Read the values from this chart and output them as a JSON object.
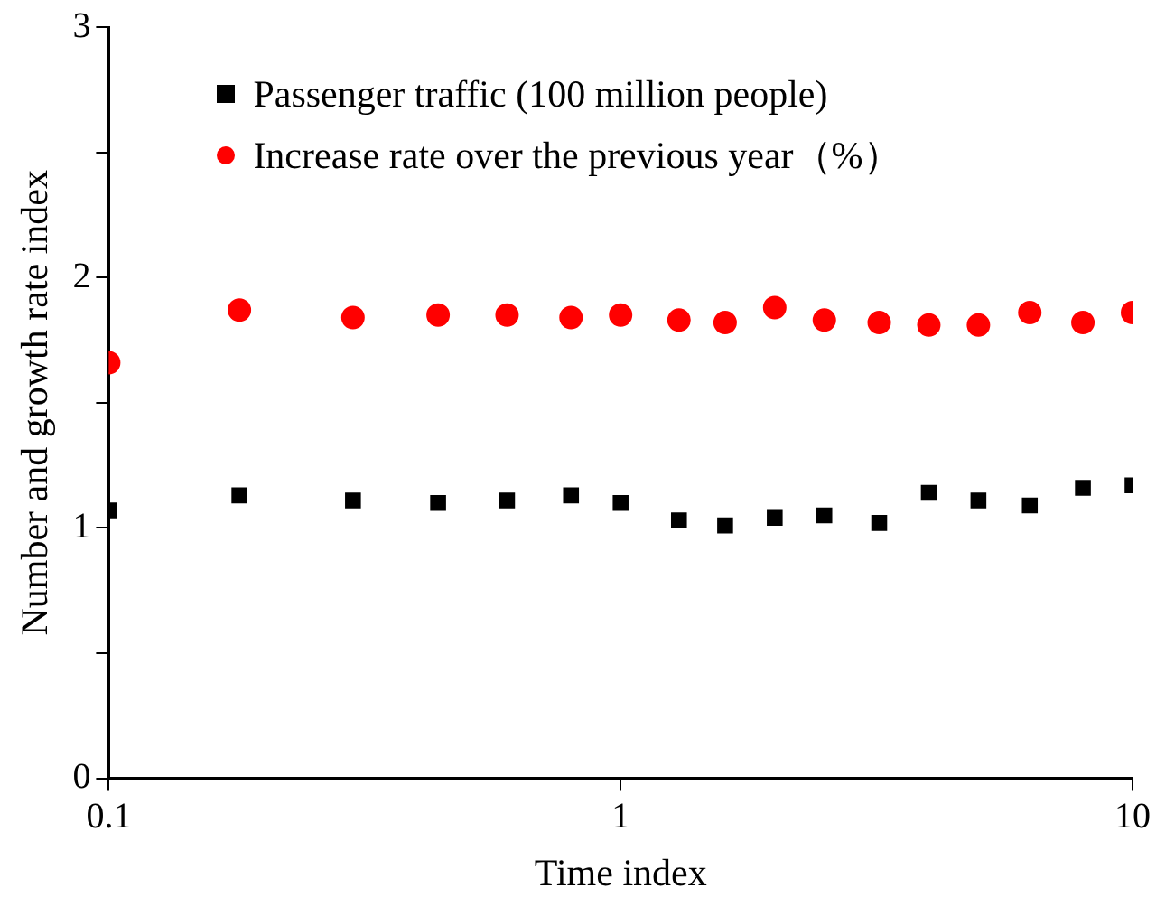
{
  "chart_data": {
    "type": "scatter",
    "xlabel": "Time index",
    "ylabel": "Number and growth rate index",
    "log": "x",
    "x": [
      0.1,
      0.18,
      0.3,
      0.44,
      0.6,
      0.8,
      1,
      1.3,
      1.6,
      2,
      2.5,
      3.2,
      4,
      5,
      6.3,
      8,
      10
    ],
    "series": [
      {
        "name": "Passenger traffic (100 million people)",
        "color": "#000000",
        "marker": "square",
        "values": [
          1.07,
          1.13,
          1.11,
          1.1,
          1.11,
          1.13,
          1.1,
          1.03,
          1.01,
          1.04,
          1.05,
          1.02,
          1.14,
          1.11,
          1.09,
          1.16,
          1.17
        ]
      },
      {
        "name": "Increase rate over the previous year（%）",
        "color": "#ff0000",
        "marker": "circle",
        "values": [
          1.66,
          1.87,
          1.84,
          1.85,
          1.85,
          1.84,
          1.85,
          1.83,
          1.82,
          1.88,
          1.83,
          1.82,
          1.81,
          1.81,
          1.86,
          1.82,
          1.86
        ]
      }
    ],
    "xlim": [
      0.1,
      10
    ],
    "xticks": [
      0.1,
      1,
      10
    ],
    "ylim": [
      0,
      3
    ],
    "yticks": [
      0,
      {
        "value": 0.5,
        "label": null
      },
      1,
      {
        "value": 1.5,
        "label": null
      },
      2,
      {
        "value": 2.5,
        "label": null
      },
      3
    ],
    "grid": false,
    "legend": "top"
  }
}
